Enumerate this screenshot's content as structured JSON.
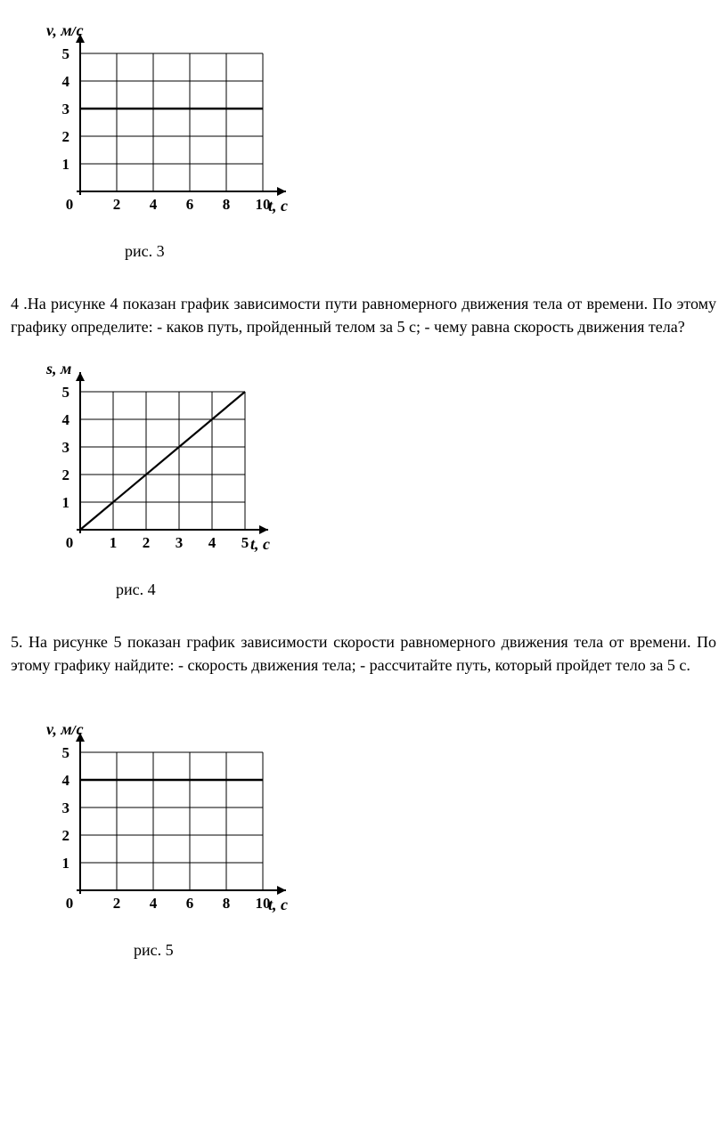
{
  "chart3": {
    "type": "line",
    "y_label": "v, м/с",
    "x_label": "t, с",
    "caption": "рис. 3",
    "x_ticks": [
      2,
      4,
      6,
      8,
      10
    ],
    "y_ticks": [
      1,
      2,
      3,
      4,
      5
    ],
    "xlim": [
      0,
      10
    ],
    "ylim": [
      0,
      5
    ],
    "data_y": 3,
    "data_x_range": [
      0,
      10
    ],
    "grid_color": "#000000",
    "grid_stroke": 1,
    "data_stroke": 2.6,
    "axis_stroke": 2,
    "arrow_size": 10,
    "label_font": "italic bold 18px Times",
    "tick_font": "bold 17px Times",
    "background": "#ffffff",
    "caption_indent": 110
  },
  "problem4": {
    "text": "4 .На рисунке 4 показан график зависимости пути равномерного движения тела от времени. По этому графику определите: - каков путь, пройденный телом за 5 с; - чему равна скорость движения тела?"
  },
  "chart4": {
    "type": "line",
    "y_label": "s, м",
    "x_label": "t, с",
    "caption": "рис. 4",
    "x_ticks": [
      1,
      2,
      3,
      4,
      5
    ],
    "y_ticks": [
      1,
      2,
      3,
      4,
      5
    ],
    "xlim": [
      0,
      5
    ],
    "ylim": [
      0,
      5
    ],
    "line_start": [
      0,
      0
    ],
    "line_end": [
      5,
      5
    ],
    "grid_color": "#000000",
    "grid_stroke": 1,
    "data_stroke": 2.2,
    "axis_stroke": 2,
    "arrow_size": 10,
    "label_font": "italic bold 18px Times",
    "tick_font": "bold 17px Times",
    "background": "#ffffff",
    "caption_indent": 100
  },
  "problem5": {
    "text": "5. На рисунке 5 показан график зависимости скорости равномерного движения тела от времени. По этому графику найдите: - скорость движения тела; - рассчитайте путь, который пройдет тело за 5 с."
  },
  "chart5": {
    "type": "line",
    "y_label": "v, м/с",
    "x_label": "t, с",
    "caption": "рис. 5",
    "x_ticks": [
      2,
      4,
      6,
      8,
      10
    ],
    "y_ticks": [
      1,
      2,
      3,
      4,
      5
    ],
    "xlim": [
      0,
      10
    ],
    "ylim": [
      0,
      5
    ],
    "data_y": 4,
    "data_x_range": [
      0,
      10
    ],
    "grid_color": "#000000",
    "grid_stroke": 1,
    "data_stroke": 2.6,
    "axis_stroke": 2,
    "arrow_size": 10,
    "label_font": "italic bold 18px Times",
    "tick_font": "bold 17px Times",
    "background": "#ffffff",
    "caption_indent": 120
  }
}
